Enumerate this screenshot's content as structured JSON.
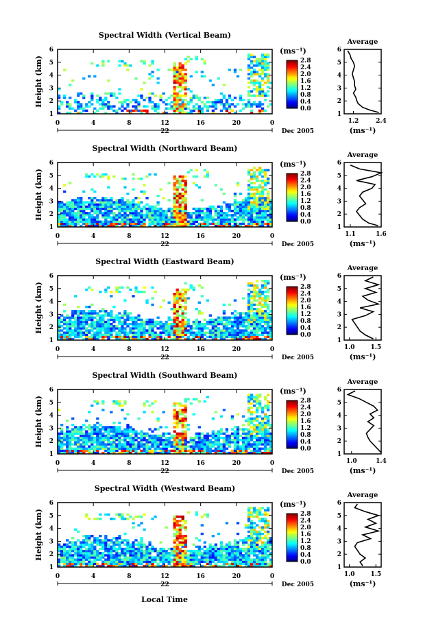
{
  "figure": {
    "xlabel": "Local Time",
    "date_label": "Dec 2005",
    "day_label": "22",
    "units": "(ms⁻¹)",
    "avg_title": "Average",
    "ylabel": "Height (km)"
  },
  "chart_data": [
    {
      "type": "heatmap",
      "title": "Spectral Width (Vertical Beam)",
      "xlabel": "Local Time",
      "ylabel": "Height (km)",
      "x_ticks": [
        "0",
        "4",
        "8",
        "12",
        "16",
        "20",
        "0"
      ],
      "x_range": [
        0,
        24
      ],
      "y_range": [
        1,
        6
      ],
      "y_ticks": [
        "1",
        "2",
        "3",
        "4",
        "5",
        "6"
      ],
      "colorbar": {
        "ticks": [
          "0.0",
          "0.4",
          "0.8",
          "1.2",
          "1.6",
          "2.0",
          "2.4",
          "2.8"
        ],
        "range": [
          0,
          2.8
        ]
      },
      "profile": {
        "x_ticks": [
          "1.2",
          "2.4"
        ],
        "x_range": [
          0.8,
          2.4
        ],
        "height": [
          1.1,
          1.3,
          1.5,
          1.8,
          2.0,
          2.3,
          2.6,
          2.9,
          3.2,
          3.5,
          3.8,
          4.1,
          4.4,
          4.7,
          5.0,
          5.3,
          5.6,
          5.9
        ],
        "width": [
          2.3,
          1.9,
          1.6,
          1.4,
          1.35,
          1.3,
          1.2,
          1.3,
          1.25,
          1.25,
          1.2,
          1.15,
          1.2,
          1.25,
          1.2,
          1.1,
          1.05,
          0.95
        ]
      }
    },
    {
      "type": "heatmap",
      "title": "Spectral Width (Northward Beam)",
      "xlabel": "Local Time",
      "ylabel": "Height (km)",
      "x_ticks": [
        "0",
        "4",
        "8",
        "12",
        "16",
        "20",
        "0"
      ],
      "x_range": [
        0,
        24
      ],
      "y_range": [
        1,
        6
      ],
      "y_ticks": [
        "1",
        "2",
        "3",
        "4",
        "5",
        "6"
      ],
      "colorbar": {
        "ticks": [
          "0.0",
          "0.4",
          "0.8",
          "1.2",
          "1.6",
          "2.0",
          "2.4",
          "2.8"
        ],
        "range": [
          0,
          2.8
        ]
      },
      "profile": {
        "x_ticks": [
          "1.1",
          "1.6"
        ],
        "x_range": [
          1.0,
          1.6
        ],
        "height": [
          1.1,
          1.3,
          1.6,
          1.9,
          2.2,
          2.5,
          2.8,
          3.1,
          3.4,
          3.7,
          4.0,
          4.3,
          4.6,
          4.9,
          5.2,
          5.5,
          5.8
        ],
        "width": [
          1.55,
          1.4,
          1.3,
          1.25,
          1.2,
          1.25,
          1.35,
          1.3,
          1.25,
          1.3,
          1.45,
          1.5,
          1.2,
          1.45,
          1.6,
          1.25,
          1.1
        ]
      }
    },
    {
      "type": "heatmap",
      "title": "Spectral Width (Eastward Beam)",
      "xlabel": "Local Time",
      "ylabel": "Height (km)",
      "x_ticks": [
        "0",
        "4",
        "8",
        "12",
        "16",
        "20",
        "0"
      ],
      "x_range": [
        0,
        24
      ],
      "y_range": [
        1,
        6
      ],
      "y_ticks": [
        "1",
        "2",
        "3",
        "4",
        "5",
        "6"
      ],
      "colorbar": {
        "ticks": [
          "0.0",
          "0.4",
          "0.8",
          "1.2",
          "1.6",
          "2.0",
          "2.4",
          "2.8"
        ],
        "range": [
          0,
          2.8
        ]
      },
      "profile": {
        "x_ticks": [
          "1.0",
          "1.5"
        ],
        "x_range": [
          0.9,
          1.6
        ],
        "height": [
          1.1,
          1.4,
          1.7,
          2.0,
          2.3,
          2.6,
          2.9,
          3.2,
          3.5,
          3.8,
          4.1,
          4.4,
          4.7,
          5.0,
          5.3,
          5.6,
          5.9
        ],
        "width": [
          1.45,
          1.3,
          1.2,
          1.15,
          1.1,
          1.05,
          1.3,
          1.45,
          1.2,
          1.55,
          1.35,
          1.25,
          1.5,
          1.3,
          1.55,
          1.3,
          1.45
        ]
      }
    },
    {
      "type": "heatmap",
      "title": "Spectral Width (Southward Beam)",
      "xlabel": "Local Time",
      "ylabel": "Height (km)",
      "x_ticks": [
        "0",
        "4",
        "8",
        "12",
        "16",
        "20",
        "0"
      ],
      "x_range": [
        0,
        24
      ],
      "y_range": [
        1,
        6
      ],
      "y_ticks": [
        "1",
        "2",
        "3",
        "4",
        "5",
        "6"
      ],
      "colorbar": {
        "ticks": [
          "0.0",
          "0.4",
          "0.8",
          "1.2",
          "1.6",
          "2.0",
          "2.4",
          "2.8"
        ],
        "range": [
          0,
          2.8
        ]
      },
      "profile": {
        "x_ticks": [
          "1.0",
          "1.4"
        ],
        "x_range": [
          0.9,
          1.4
        ],
        "height": [
          1.1,
          1.4,
          1.7,
          2.0,
          2.3,
          2.6,
          2.9,
          3.2,
          3.5,
          3.8,
          4.1,
          4.4,
          4.7,
          5.0,
          5.3,
          5.6,
          5.9
        ],
        "width": [
          1.4,
          1.35,
          1.3,
          1.25,
          1.22,
          1.2,
          1.25,
          1.3,
          1.22,
          1.3,
          1.25,
          1.35,
          1.3,
          1.2,
          1.1,
          0.95,
          1.05
        ]
      }
    },
    {
      "type": "heatmap",
      "title": "Spectral Width (Westward Beam)",
      "xlabel": "Local Time",
      "ylabel": "Height (km)",
      "x_ticks": [
        "0",
        "4",
        "8",
        "12",
        "16",
        "20",
        "0"
      ],
      "x_range": [
        0,
        24
      ],
      "y_range": [
        1,
        6
      ],
      "y_ticks": [
        "1",
        "2",
        "3",
        "4",
        "5",
        "6"
      ],
      "colorbar": {
        "ticks": [
          "0.0",
          "0.4",
          "0.8",
          "1.2",
          "1.6",
          "2.0",
          "2.4",
          "2.8"
        ],
        "range": [
          0,
          2.8
        ]
      },
      "profile": {
        "x_ticks": [
          "1.0",
          "1.5"
        ],
        "x_range": [
          0.9,
          1.6
        ],
        "height": [
          1.1,
          1.4,
          1.7,
          2.0,
          2.3,
          2.6,
          2.9,
          3.2,
          3.5,
          3.8,
          4.1,
          4.4,
          4.7,
          5.0,
          5.3,
          5.6,
          5.9
        ],
        "width": [
          1.25,
          1.2,
          1.3,
          1.2,
          1.15,
          1.1,
          1.15,
          1.4,
          1.25,
          1.55,
          1.3,
          1.5,
          1.35,
          1.55,
          1.3,
          1.1,
          1.15
        ]
      }
    }
  ]
}
